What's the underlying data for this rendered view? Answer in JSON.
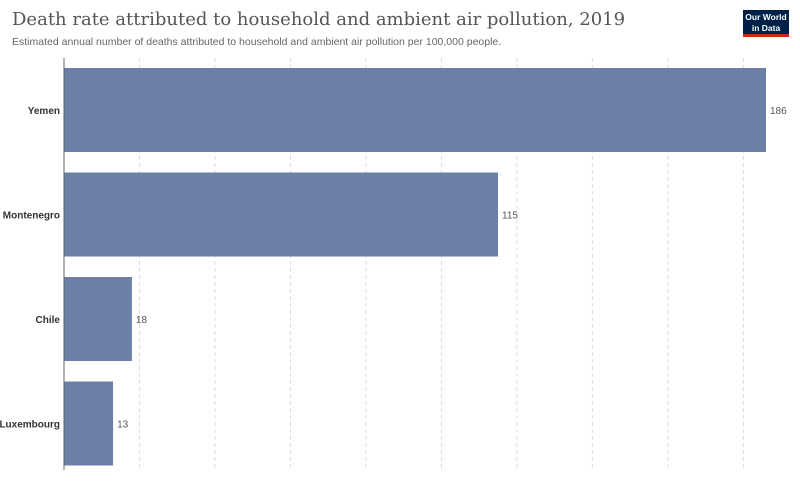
{
  "title": "Death rate attributed to household and ambient air pollution, 2019",
  "subtitle": "Estimated annual number of deaths attributed to household and ambient air pollution per 100,000 people.",
  "logo": {
    "line1": "Our World",
    "line2": "in Data"
  },
  "colors": {
    "bar": "#6b7fa7",
    "grid": "#dddddd",
    "axis": "#666666",
    "label": "#333333",
    "value": "#555555"
  },
  "chart_data": {
    "type": "bar",
    "orientation": "horizontal",
    "categories": [
      "Yemen",
      "Montenegro",
      "Chile",
      "Luxembourg"
    ],
    "values": [
      186,
      115,
      18,
      13
    ],
    "value_labels": [
      "186",
      "115",
      "18",
      "13"
    ],
    "xlim": [
      0,
      190
    ],
    "grid": true
  }
}
